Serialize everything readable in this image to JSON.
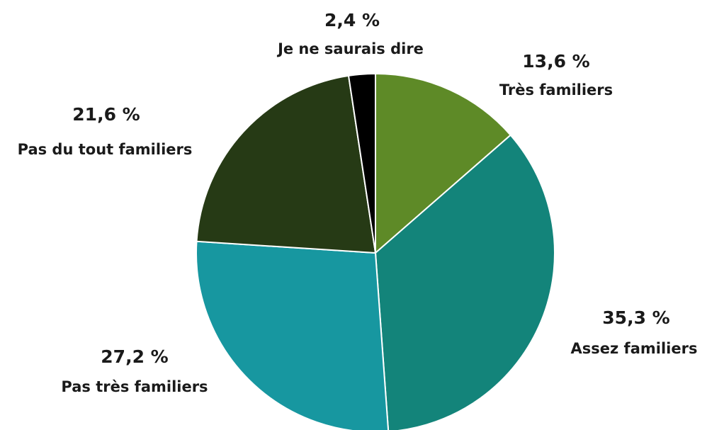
{
  "chart_data": {
    "type": "pie",
    "categories": [
      "Très familiers",
      "Assez familiers",
      "Pas très familiers",
      "Pas du tout familiers",
      "Je ne saurais dire"
    ],
    "values": [
      13.6,
      35.3,
      27.2,
      21.6,
      2.4
    ],
    "value_labels": [
      "13,6 %",
      "35,3 %",
      "27,2 %",
      "21,6 %",
      "2,4 %"
    ],
    "colors": [
      "#5e8a27",
      "#13847a",
      "#1797a0",
      "#263a15",
      "#000000"
    ]
  }
}
